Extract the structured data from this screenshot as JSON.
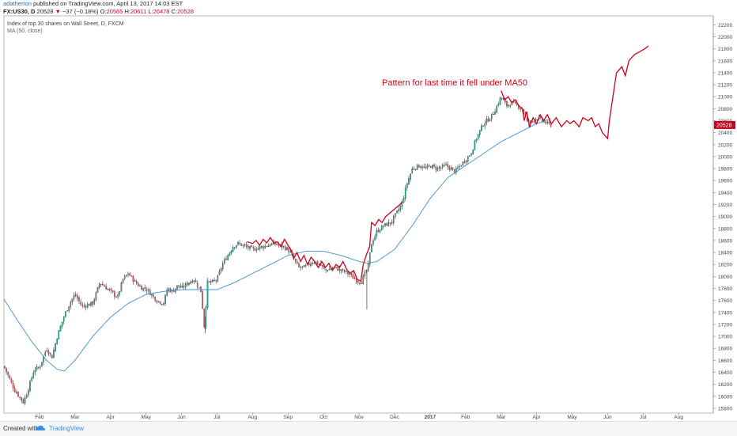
{
  "header": {
    "author": "adatherton",
    "published": " published on TradingView.com, April 13, 2017 14:03 EST",
    "symbol": "FX:US30, D",
    "price": "20528",
    "change_arrow": "▼",
    "change": "−37 (−0.18%)",
    "o_label": "O:",
    "o_value": "20565",
    "h_label": "H:",
    "h_value": "20611",
    "l_label": "L:",
    "l_value": "20478",
    "c_label": "C:",
    "c_value": "20528"
  },
  "footer": {
    "created_label": "Created with",
    "brand": "TradingView"
  },
  "chart_data": {
    "type": "candlestick",
    "title": "Index of top 30 shares on Wall Street, D, FXCM",
    "indicator_label": "MA (50, close)",
    "last_price_label": "20528",
    "annotation": "Pattern for last time it fell under MA50",
    "yaxis": {
      "ticks": [
        15800,
        16000,
        16200,
        16400,
        16600,
        16800,
        17000,
        17200,
        17400,
        17600,
        17800,
        18000,
        18200,
        18400,
        18600,
        18800,
        19000,
        19200,
        19400,
        19600,
        19800,
        20000,
        20200,
        20400,
        20600,
        20800,
        21000,
        21200,
        21400,
        21600,
        21800,
        22000,
        22200
      ],
      "range": [
        15720,
        22350
      ],
      "position": "right"
    },
    "xaxis": {
      "labels": [
        {
          "label": "Feb",
          "month": 1
        },
        {
          "label": "Mar",
          "month": 2
        },
        {
          "label": "Apr",
          "month": 3
        },
        {
          "label": "May",
          "month": 4
        },
        {
          "label": "Jun",
          "month": 5
        },
        {
          "label": "Jul",
          "month": 6
        },
        {
          "label": "Aug",
          "month": 7
        },
        {
          "label": "Sep",
          "month": 8
        },
        {
          "label": "Oct",
          "month": 9
        },
        {
          "label": "Nov",
          "month": 10
        },
        {
          "label": "Dec",
          "month": 11
        },
        {
          "label": "2017",
          "month": 12
        },
        {
          "label": "Feb",
          "month": 13
        },
        {
          "label": "Mar",
          "month": 14
        },
        {
          "label": "Apr",
          "month": 15
        },
        {
          "label": "May",
          "month": 16
        },
        {
          "label": "Jun",
          "month": 17
        },
        {
          "label": "Jul",
          "month": 18
        },
        {
          "label": "Aug",
          "month": 19
        }
      ],
      "start": "2016-01-01",
      "end": "2017-08-31"
    },
    "price_anchors": [
      [
        0.0,
        16500
      ],
      [
        0.3,
        16100
      ],
      [
        0.55,
        15900
      ],
      [
        0.7,
        16150
      ],
      [
        0.85,
        16450
      ],
      [
        1.0,
        16480
      ],
      [
        1.2,
        16800
      ],
      [
        1.35,
        16650
      ],
      [
        1.5,
        17000
      ],
      [
        1.7,
        17350
      ],
      [
        1.85,
        17550
      ],
      [
        2.0,
        17700
      ],
      [
        2.2,
        17500
      ],
      [
        2.5,
        17550
      ],
      [
        2.7,
        17900
      ],
      [
        3.0,
        17750
      ],
      [
        3.2,
        17650
      ],
      [
        3.35,
        17950
      ],
      [
        3.5,
        18050
      ],
      [
        3.7,
        17900
      ],
      [
        3.9,
        17800
      ],
      [
        4.0,
        17800
      ],
      [
        4.15,
        17700
      ],
      [
        4.3,
        17600
      ],
      [
        4.5,
        17550
      ],
      [
        4.6,
        17800
      ],
      [
        4.75,
        17750
      ],
      [
        4.9,
        17850
      ],
      [
        5.0,
        17800
      ],
      [
        5.2,
        17900
      ],
      [
        5.35,
        17950
      ],
      [
        5.55,
        17750
      ],
      [
        5.65,
        17100
      ],
      [
        5.72,
        17900
      ],
      [
        5.85,
        17900
      ],
      [
        6.0,
        17950
      ],
      [
        6.15,
        18200
      ],
      [
        6.3,
        18350
      ],
      [
        6.45,
        18500
      ],
      [
        6.6,
        18550
      ],
      [
        6.8,
        18500
      ],
      [
        7.0,
        18450
      ],
      [
        7.3,
        18500
      ],
      [
        7.6,
        18550
      ],
      [
        7.85,
        18500
      ],
      [
        8.0,
        18450
      ],
      [
        8.15,
        18300
      ],
      [
        8.3,
        18150
      ],
      [
        8.45,
        18150
      ],
      [
        8.7,
        18250
      ],
      [
        8.9,
        18200
      ],
      [
        9.05,
        18100
      ],
      [
        9.3,
        18150
      ],
      [
        9.5,
        18100
      ],
      [
        9.7,
        18050
      ],
      [
        9.9,
        17950
      ],
      [
        10.05,
        17900
      ],
      [
        10.25,
        18150
      ],
      [
        10.35,
        18550
      ],
      [
        10.5,
        18750
      ],
      [
        10.7,
        18850
      ],
      [
        10.9,
        18900
      ],
      [
        11.05,
        19050
      ],
      [
        11.2,
        19200
      ],
      [
        11.35,
        19550
      ],
      [
        11.5,
        19800
      ],
      [
        11.7,
        19850
      ],
      [
        11.9,
        19800
      ],
      [
        12.0,
        19850
      ],
      [
        12.2,
        19800
      ],
      [
        12.45,
        19850
      ],
      [
        12.7,
        19750
      ],
      [
        12.85,
        19850
      ],
      [
        13.0,
        19950
      ],
      [
        13.15,
        20050
      ],
      [
        13.3,
        20300
      ],
      [
        13.5,
        20550
      ],
      [
        13.7,
        20650
      ],
      [
        13.85,
        20800
      ],
      [
        14.0,
        21000
      ],
      [
        14.15,
        20850
      ],
      [
        14.3,
        20900
      ],
      [
        14.45,
        20850
      ],
      [
        14.6,
        20800
      ],
      [
        14.75,
        20550
      ],
      [
        14.9,
        20600
      ],
      [
        15.0,
        20650
      ],
      [
        15.15,
        20600
      ],
      [
        15.3,
        20550
      ],
      [
        15.42,
        20528
      ]
    ],
    "ma50": [
      [
        0.0,
        17620
      ],
      [
        0.4,
        17250
      ],
      [
        0.8,
        16900
      ],
      [
        1.2,
        16600
      ],
      [
        1.5,
        16450
      ],
      [
        1.7,
        16420
      ],
      [
        2.0,
        16600
      ],
      [
        2.5,
        17000
      ],
      [
        3.0,
        17320
      ],
      [
        3.5,
        17550
      ],
      [
        4.0,
        17700
      ],
      [
        4.5,
        17750
      ],
      [
        5.0,
        17780
      ],
      [
        5.5,
        17780
      ],
      [
        6.0,
        17780
      ],
      [
        6.5,
        17900
      ],
      [
        7.0,
        18050
      ],
      [
        7.5,
        18200
      ],
      [
        8.0,
        18350
      ],
      [
        8.5,
        18420
      ],
      [
        9.0,
        18420
      ],
      [
        9.5,
        18350
      ],
      [
        10.0,
        18250
      ],
      [
        10.25,
        18220
      ],
      [
        10.5,
        18250
      ],
      [
        11.0,
        18450
      ],
      [
        11.5,
        18850
      ],
      [
        12.0,
        19300
      ],
      [
        12.5,
        19650
      ],
      [
        13.0,
        19850
      ],
      [
        13.5,
        20050
      ],
      [
        14.0,
        20250
      ],
      [
        14.5,
        20400
      ],
      [
        15.0,
        20550
      ],
      [
        15.42,
        20640
      ]
    ],
    "overlay_series": [
      {
        "values": [
          [
            6.85,
            18580
          ],
          [
            7.0,
            18550
          ],
          [
            7.1,
            18600
          ],
          [
            7.2,
            18520
          ],
          [
            7.3,
            18620
          ],
          [
            7.4,
            18560
          ],
          [
            7.5,
            18650
          ],
          [
            7.6,
            18560
          ],
          [
            7.7,
            18580
          ],
          [
            7.8,
            18500
          ],
          [
            7.9,
            18620
          ],
          [
            8.0,
            18520
          ],
          [
            8.08,
            18450
          ],
          [
            8.16,
            18300
          ],
          [
            8.25,
            18400
          ],
          [
            8.35,
            18250
          ],
          [
            8.45,
            18350
          ],
          [
            8.55,
            18200
          ],
          [
            8.65,
            18320
          ],
          [
            8.75,
            18250
          ],
          [
            8.85,
            18150
          ],
          [
            8.95,
            18250
          ],
          [
            9.05,
            18150
          ],
          [
            9.15,
            18220
          ],
          [
            9.25,
            18100
          ],
          [
            9.35,
            18200
          ],
          [
            9.45,
            18150
          ],
          [
            9.55,
            18250
          ],
          [
            9.65,
            18120
          ],
          [
            9.75,
            18050
          ],
          [
            9.85,
            18100
          ],
          [
            9.95,
            17950
          ],
          [
            10.05,
            17920
          ],
          [
            10.12,
            18200
          ],
          [
            10.2,
            18350
          ],
          [
            10.3,
            18500
          ],
          [
            10.35,
            18900
          ],
          [
            10.45,
            18850
          ],
          [
            10.55,
            18950
          ],
          [
            10.65,
            18900
          ],
          [
            10.75,
            19000
          ],
          [
            10.85,
            19050
          ],
          [
            10.95,
            19100
          ],
          [
            11.05,
            19150
          ],
          [
            11.15,
            19200
          ],
          [
            11.22,
            19250
          ]
        ],
        "color": "#d0021b"
      },
      {
        "values": [
          [
            14.0,
            21100
          ],
          [
            14.1,
            20950
          ],
          [
            14.2,
            21000
          ],
          [
            14.3,
            20900
          ],
          [
            14.4,
            20950
          ],
          [
            14.5,
            20850
          ],
          [
            14.6,
            20800
          ],
          [
            14.65,
            20600
          ],
          [
            14.72,
            20750
          ],
          [
            14.8,
            20500
          ],
          [
            14.9,
            20650
          ],
          [
            15.0,
            20550
          ],
          [
            15.1,
            20700
          ],
          [
            15.2,
            20600
          ],
          [
            15.3,
            20700
          ],
          [
            15.42,
            20550
          ],
          [
            15.55,
            20650
          ],
          [
            15.7,
            20500
          ],
          [
            15.85,
            20600
          ],
          [
            15.95,
            20550
          ],
          [
            16.05,
            20600
          ],
          [
            16.2,
            20500
          ],
          [
            16.3,
            20650
          ],
          [
            16.45,
            20600
          ],
          [
            16.55,
            20650
          ],
          [
            16.65,
            20500
          ],
          [
            16.75,
            20550
          ],
          [
            16.85,
            20400
          ],
          [
            17.0,
            20300
          ],
          [
            17.05,
            20600
          ],
          [
            17.15,
            21000
          ],
          [
            17.25,
            21400
          ],
          [
            17.4,
            21500
          ],
          [
            17.5,
            21350
          ],
          [
            17.6,
            21600
          ],
          [
            17.75,
            21700
          ],
          [
            17.9,
            21750
          ],
          [
            18.05,
            21800
          ],
          [
            18.15,
            21850
          ]
        ],
        "color": "#d0021b"
      }
    ],
    "grid": false,
    "colors": {
      "up": "#26a69a",
      "down": "#ef5350",
      "ma": "#3f8fcf",
      "overlay": "#d0021b",
      "price_tag": "#d0021b"
    }
  }
}
